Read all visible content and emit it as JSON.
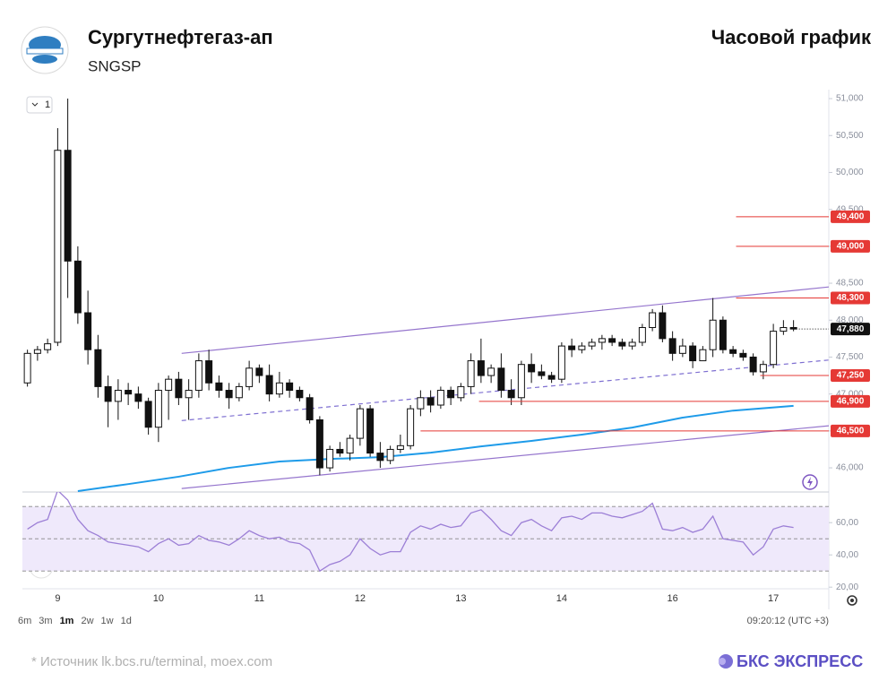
{
  "header": {
    "title": "Сургутнефтегаз-ап",
    "ticker": "SNGSP",
    "chart_kind": "Часовой график"
  },
  "chart_data": {
    "type": "candlestick",
    "interval_label": "1",
    "categories": [
      null,
      null,
      null,
      "9",
      null,
      null,
      null,
      null,
      null,
      null,
      null,
      null,
      null,
      "10",
      null,
      null,
      null,
      null,
      null,
      null,
      null,
      null,
      null,
      "11",
      null,
      null,
      null,
      null,
      null,
      null,
      null,
      null,
      null,
      "12",
      null,
      null,
      null,
      null,
      null,
      null,
      null,
      null,
      null,
      "13",
      null,
      null,
      null,
      null,
      null,
      null,
      null,
      null,
      null,
      "14",
      null,
      null,
      null,
      null,
      null,
      null,
      null,
      null,
      null,
      null,
      "16",
      null,
      null,
      null,
      null,
      null,
      null,
      null,
      null,
      null,
      "17",
      null,
      null
    ],
    "open": [
      47150,
      47550,
      47600,
      47700,
      50300,
      48800,
      48100,
      47600,
      47100,
      46900,
      47050,
      47000,
      46900,
      46550,
      47050,
      47200,
      46950,
      47050,
      47450,
      47150,
      47050,
      46950,
      47100,
      47350,
      47250,
      47000,
      47150,
      47050,
      46950,
      46650,
      46000,
      46250,
      46200,
      46400,
      46800,
      46200,
      46100,
      46250,
      46300,
      46800,
      46950,
      46850,
      47050,
      46950,
      47100,
      47450,
      47250,
      47350,
      47050,
      46950,
      47400,
      47300,
      47250,
      47200,
      47650,
      47600,
      47650,
      47700,
      47750,
      47700,
      47650,
      47700,
      47900,
      48100,
      47750,
      47550,
      47650,
      47450,
      47600,
      48000,
      47600,
      47550,
      47500,
      47300,
      47400,
      47850,
      47900
    ],
    "high": [
      47600,
      47650,
      47750,
      50600,
      51000,
      49000,
      48400,
      47800,
      47250,
      47200,
      47150,
      47100,
      46950,
      47150,
      47250,
      47300,
      47200,
      47550,
      47600,
      47250,
      47150,
      47150,
      47450,
      47400,
      47400,
      47300,
      47200,
      47100,
      47000,
      46700,
      46300,
      46350,
      46450,
      46850,
      46850,
      46350,
      46300,
      46450,
      46850,
      47050,
      47050,
      47100,
      47100,
      47150,
      47550,
      47750,
      47400,
      47550,
      47200,
      47450,
      47550,
      47400,
      47300,
      47700,
      47750,
      47700,
      47750,
      47800,
      47800,
      47750,
      47750,
      47950,
      48150,
      48200,
      47850,
      47750,
      47700,
      47650,
      48300,
      48050,
      47650,
      47600,
      47550,
      47450,
      47950,
      48000,
      48000
    ],
    "low": [
      47100,
      47450,
      47550,
      47650,
      48300,
      47950,
      47400,
      46950,
      46550,
      46650,
      46850,
      46800,
      46450,
      46350,
      46650,
      46850,
      46650,
      46950,
      47050,
      46950,
      46800,
      46900,
      47050,
      47150,
      46900,
      46950,
      46950,
      46900,
      46600,
      45900,
      45950,
      46150,
      46100,
      46300,
      46150,
      46000,
      46050,
      46200,
      46250,
      46700,
      46750,
      46800,
      46850,
      46900,
      47000,
      47150,
      47150,
      46950,
      46850,
      46850,
      47150,
      47200,
      47150,
      47150,
      47500,
      47550,
      47600,
      47600,
      47650,
      47600,
      47600,
      47650,
      47850,
      47700,
      47450,
      47500,
      47350,
      47450,
      47500,
      47550,
      47500,
      47450,
      47250,
      47200,
      47350,
      47800,
      47850
    ],
    "close": [
      47550,
      47600,
      47680,
      50300,
      48800,
      48100,
      47600,
      47100,
      46900,
      47050,
      47000,
      46900,
      46550,
      47050,
      47200,
      46950,
      47050,
      47450,
      47150,
      47050,
      46950,
      47100,
      47350,
      47250,
      47000,
      47150,
      47050,
      46950,
      46650,
      46000,
      46250,
      46200,
      46400,
      46800,
      46200,
      46100,
      46250,
      46300,
      46800,
      46950,
      46850,
      47050,
      46950,
      47100,
      47450,
      47250,
      47350,
      47050,
      46950,
      47400,
      47300,
      47250,
      47200,
      47650,
      47600,
      47650,
      47700,
      47750,
      47700,
      47650,
      47700,
      47900,
      48100,
      47750,
      47550,
      47650,
      47450,
      47600,
      48000,
      47600,
      47550,
      47500,
      47300,
      47400,
      47850,
      47900,
      47880
    ],
    "color_up": "#ffffff",
    "color_down": "#111111",
    "ylim": [
      45650,
      51100
    ],
    "yticks": [
      {
        "value": 46000,
        "label": "46,000"
      },
      {
        "value": 46500,
        "label": "46,500"
      },
      {
        "value": 47000,
        "label": "47,000"
      },
      {
        "value": 47500,
        "label": "47,500"
      },
      {
        "value": 48000,
        "label": "48,000"
      },
      {
        "value": 48500,
        "label": "48,500"
      },
      {
        "value": 49000,
        "label": "49,000"
      },
      {
        "value": 49500,
        "label": "49,500"
      },
      {
        "value": 50000,
        "label": "50,000"
      },
      {
        "value": 50500,
        "label": "50,500"
      },
      {
        "value": 51000,
        "label": "51,000"
      }
    ],
    "moving_average": {
      "color": "#1e9be9",
      "x": [
        5,
        10,
        15,
        20,
        25,
        30,
        35,
        40,
        45,
        50,
        55,
        60,
        65,
        70,
        76
      ],
      "values": [
        45685,
        45780,
        45880,
        46000,
        46085,
        46120,
        46145,
        46205,
        46290,
        46365,
        46450,
        46545,
        46680,
        46775,
        46840
      ]
    },
    "trendlines": [
      {
        "color": "#9575cd",
        "dashed": false,
        "x": [
          15.3,
          79.5
        ],
        "values": [
          47550,
          48450
        ]
      },
      {
        "color": "#9575cd",
        "dashed": false,
        "x": [
          15.3,
          79.5
        ],
        "values": [
          45720,
          46570
        ]
      },
      {
        "color": "#7e6fd1",
        "dashed": true,
        "x": [
          15.3,
          79.5
        ],
        "values": [
          46640,
          47460
        ]
      }
    ],
    "level_color": "#e53935",
    "levels": [
      {
        "value": 49400,
        "label": "49,400",
        "x_start": 70.3
      },
      {
        "value": 49000,
        "label": "49,000",
        "x_start": 70.3
      },
      {
        "value": 48300,
        "label": "48,300",
        "x_start": 70.3
      },
      {
        "value": 47250,
        "label": "47,250",
        "x_start": 72.7
      },
      {
        "value": 46900,
        "label": "46,900",
        "x_start": 44.8
      },
      {
        "value": 46500,
        "label": "46,500",
        "x_start": 39.0
      }
    ],
    "last_price": {
      "value": 47880,
      "label": "47,880"
    },
    "rsi": {
      "type": "line",
      "color": "#9c7fd6",
      "band_color": "#efe9fb",
      "bands": [
        30,
        50,
        70
      ],
      "ylim": [
        19,
        79
      ],
      "yticks": [
        {
          "value": 20,
          "label": "20,00"
        },
        {
          "value": 40,
          "label": "40,00"
        },
        {
          "value": 60,
          "label": "60,00"
        }
      ],
      "values": [
        56,
        60,
        62,
        80,
        74,
        62,
        55,
        52,
        48,
        47,
        46,
        45,
        42,
        47,
        50,
        46,
        47,
        52,
        49,
        48,
        46,
        50,
        55,
        52,
        50,
        51,
        48,
        47,
        43,
        30,
        34,
        36,
        40,
        50,
        44,
        40,
        42,
        42,
        54,
        58,
        56,
        59,
        57,
        58,
        66,
        68,
        62,
        55,
        52,
        60,
        62,
        58,
        55,
        63,
        64,
        62,
        66,
        66,
        64,
        63,
        65,
        67,
        72,
        56,
        55,
        57,
        54,
        56,
        64,
        50,
        49,
        48,
        40,
        45,
        56,
        58,
        57
      ]
    }
  },
  "toolbar": {
    "ranges": [
      "6m",
      "3m",
      "1m",
      "2w",
      "1w",
      "1d"
    ],
    "active_index": 2,
    "time": "09:20:12 (UTC +3)"
  },
  "footer": {
    "source": "*  Источник lk.bcs.ru/terminal, moex.com",
    "brand": "БКС ЭКСПРЕСС"
  }
}
